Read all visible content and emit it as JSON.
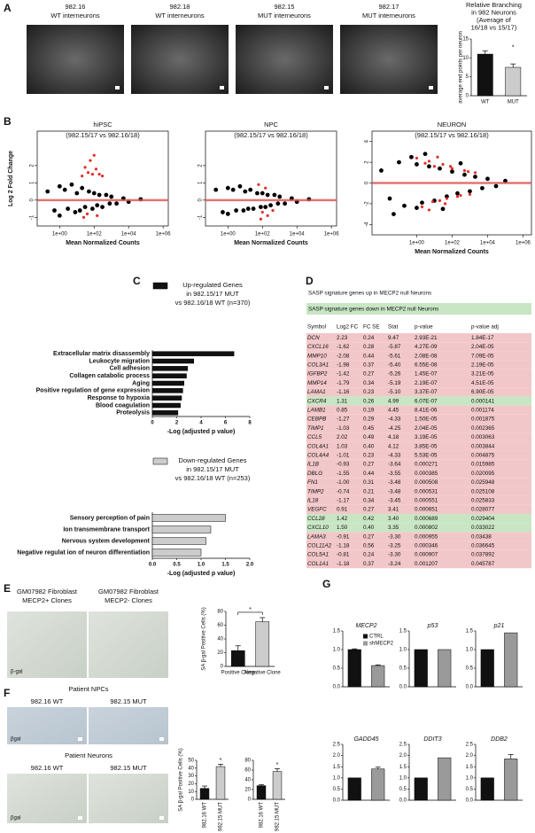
{
  "panel_labels": [
    "A",
    "B",
    "C",
    "D",
    "E",
    "F",
    "G"
  ],
  "micrographs": {
    "A": [
      [
        "982.16",
        "WT interneurons"
      ],
      [
        "982.18",
        "WT interneurons"
      ],
      [
        "982.15",
        "MUT interneurons"
      ],
      [
        "982.17",
        "MUT interneurons"
      ]
    ],
    "E": [
      [
        "GM07982 Fibroblast",
        "MECP2+ Clones"
      ],
      [
        "GM07982 Fibroblast",
        "MECP2- Clones"
      ]
    ],
    "E_stain": "β-gal",
    "F": [
      {
        "heading": "Patient NPCs",
        "captions": [
          "982.16 WT",
          "982.15 MUT"
        ],
        "stain": "βgal"
      },
      {
        "heading": "Patient Neurons",
        "captions": [
          "982.16 WT",
          "982.15 MUT"
        ],
        "stain": "βgal"
      }
    ]
  },
  "table": {
    "legend_up": "SASP signature genes up in MECP2 null Neurons",
    "legend_down": "SASP signature genes down in MECP2 null Neurons",
    "columns": [
      "Symbol",
      "Log2 FC",
      "FC SE",
      "Stat",
      "p-value",
      "p-value adj"
    ],
    "row_groups": [
      "up",
      "up",
      "up",
      "up",
      "up",
      "up",
      "up",
      "down",
      "up",
      "up",
      "up",
      "up",
      "up",
      "up",
      "up",
      "up",
      "up",
      "up",
      "up",
      "up",
      "down",
      "down",
      "up",
      "up",
      "up",
      "up"
    ],
    "rows": [
      [
        "DCN",
        "2.23",
        "0.24",
        "9.47",
        "2.93E-21",
        "1.84E-17"
      ],
      [
        "CXCL16",
        "-1.62",
        "0.28",
        "-5.87",
        "4.27E-09",
        "2.04E-05"
      ],
      [
        "MMP10",
        "-2.08",
        "0.44",
        "-5.61",
        "2.08E-08",
        "7.09E-05"
      ],
      [
        "COL3A1",
        "-1.98",
        "0.37",
        "-5.40",
        "6.55E-08",
        "2.19E-05"
      ],
      [
        "IGFBP2",
        "-1.42",
        "0.27",
        "-5.26",
        "1.45E-07",
        "3.21E-05"
      ],
      [
        "MMP14",
        "-1.79",
        "0.34",
        "-5.19",
        "2.19E-07",
        "4.51E-05"
      ],
      [
        "LAMA1",
        "-1.16",
        "0.23",
        "-5.10",
        "3.37E-07",
        "6.90E-05"
      ],
      [
        "CXCR4",
        "1.31",
        "0.26",
        "4.99",
        "6.07E-07",
        "0.000141"
      ],
      [
        "LAMB1",
        "0.85",
        "0.19",
        "4.45",
        "8.41E-06",
        "0.001174"
      ],
      [
        "CEBPB",
        "-1.27",
        "0.29",
        "-4.33",
        "1.50E-05",
        "0.001875"
      ],
      [
        "TIMP1",
        "-1.03",
        "0.45",
        "-4.25",
        "2.04E-05",
        "0.002365"
      ],
      [
        "CCL5",
        "2.02",
        "0.49",
        "4.18",
        "3.19E-05",
        "0.003063"
      ],
      [
        "COL4A1",
        "1.03",
        "0.40",
        "4.12",
        "3.85E-05",
        "0.003844"
      ],
      [
        "COL4A4",
        "-1.01",
        "0.23",
        "-4.33",
        "5.53E-05",
        "0.004875"
      ],
      [
        "IL1B",
        "-0.93",
        "0.27",
        "-3.64",
        "0.000271",
        "0.015985"
      ],
      [
        "DBLG",
        "-1.55",
        "0.44",
        "-3.55",
        "0.000385",
        "0.020095"
      ],
      [
        "FN1",
        "-1.00",
        "0.31",
        "-3.48",
        "0.000508",
        "0.025948"
      ],
      [
        "TIMP2",
        "-0.74",
        "0.21",
        "-3.48",
        "0.000531",
        "0.025108"
      ],
      [
        "IL18",
        "-1.17",
        "0.34",
        "-3.45",
        "0.000551",
        "0.025833"
      ],
      [
        "VEGFC",
        "0.91",
        "0.27",
        "3.41",
        "0.000651",
        "0.028077"
      ],
      [
        "CCL28",
        "1.42",
        "0.42",
        "3.40",
        "0.000689",
        "0.029404"
      ],
      [
        "CXCL10",
        "1.50",
        "0.40",
        "3.35",
        "0.000802",
        "0.033022"
      ],
      [
        "LAMA3",
        "-0.91",
        "0.27",
        "-3.30",
        "0.000955",
        "0.03438"
      ],
      [
        "COL11A2",
        "-1.18",
        "0.56",
        "-3.25",
        "0.000346",
        "0.036645"
      ],
      [
        "COL5A1",
        "-0.81",
        "0.24",
        "-3.30",
        "0.000907",
        "0.037892"
      ],
      [
        "COL1A1",
        "-1.18",
        "0.37",
        "-3.24",
        "0.001207",
        "0.045787"
      ]
    ]
  },
  "chart_data": [
    {
      "type": "bar",
      "title_lines": [
        "Relative Branching",
        "in 982 Neurons",
        "(Average of",
        "16/18 vs 15/17)"
      ],
      "ylabel": "average end points per neuron",
      "categories": [
        "WT",
        "MUT"
      ],
      "values": [
        11,
        7.5
      ],
      "errors": [
        0.8,
        0.9
      ],
      "colors": [
        "#111111",
        "#cccccc"
      ],
      "ylim": [
        0,
        15
      ],
      "yticks": [
        0,
        5,
        10,
        15
      ],
      "significance": "*"
    },
    {
      "type": "scatter",
      "title": "hiPSC",
      "subtitle": "(982.15/17 vs 982.16/18)",
      "xlabel": "Mean Normalized Counts",
      "ylabel": "Log 2 Fold Change",
      "log_x": true,
      "xlim": [
        0.05,
        2000000
      ],
      "xticks": [
        {
          "value": 1,
          "label": "1e+00"
        },
        {
          "value": 100,
          "label": "1e+02"
        },
        {
          "value": 10000,
          "label": "1e+04"
        },
        {
          "value": 1000000,
          "label": "1e+06"
        }
      ],
      "ylim": [
        -1.5,
        4
      ],
      "yticks": [
        -1,
        0,
        1,
        2
      ],
      "hline": 0,
      "hline_color": "#d9534f",
      "series": [
        {
          "color": "#000000",
          "x": [
            0.2,
            0.5,
            1,
            1,
            2,
            3,
            5,
            8,
            10,
            15,
            20,
            30,
            50,
            80,
            100,
            150,
            200,
            300,
            500,
            800,
            1000,
            2000,
            5000,
            10000,
            50000
          ],
          "values": [
            0.5,
            -0.6,
            0.8,
            -0.9,
            0.6,
            -0.5,
            0.9,
            -0.7,
            0.4,
            -0.6,
            0.7,
            -0.4,
            0.5,
            -0.5,
            0.4,
            -0.3,
            0.3,
            -0.4,
            0.3,
            -0.2,
            0.2,
            -0.2,
            0.1,
            -0.1,
            0.05
          ]
        },
        {
          "color": "#e0302a",
          "x": [
            20,
            30,
            45,
            60,
            80,
            100,
            130,
            200,
            300,
            40,
            150,
            25
          ],
          "values": [
            1.4,
            1.9,
            1.6,
            2.3,
            1.5,
            2.6,
            1.8,
            1.5,
            1.4,
            -0.8,
            -0.9,
            -1.0
          ]
        }
      ]
    },
    {
      "type": "scatter",
      "title": "NPC",
      "subtitle": "(982.15/17 vs 982.16/18)",
      "xlabel": "Mean Normalized Counts",
      "log_x": true,
      "xlim": [
        0.05,
        2000000
      ],
      "xticks": [
        {
          "value": 1,
          "label": "1e+00"
        },
        {
          "value": 100,
          "label": "1e+02"
        },
        {
          "value": 10000,
          "label": "1e+04"
        },
        {
          "value": 1000000,
          "label": "1e+06"
        }
      ],
      "ylim": [
        -1.5,
        4
      ],
      "yticks": [
        -1,
        0,
        1,
        2
      ],
      "hline": 0,
      "hline_color": "#d9534f",
      "series": [
        {
          "color": "#000000",
          "x": [
            0.2,
            0.5,
            1,
            1,
            2,
            3,
            5,
            8,
            10,
            15,
            20,
            30,
            50,
            80,
            100,
            150,
            200,
            300,
            500,
            800,
            1000,
            2000,
            5000,
            10000,
            50000
          ],
          "values": [
            0.6,
            -0.7,
            0.7,
            -0.8,
            0.6,
            -0.6,
            0.8,
            -0.6,
            0.5,
            -0.5,
            0.6,
            -0.5,
            0.4,
            -0.4,
            0.4,
            -0.4,
            0.3,
            -0.3,
            0.3,
            -0.2,
            0.2,
            -0.2,
            0.1,
            -0.1,
            0.05
          ]
        },
        {
          "color": "#e0302a",
          "x": [
            60,
            100,
            200,
            400,
            80,
            150
          ],
          "values": [
            0.9,
            -0.7,
            -0.9,
            -0.6,
            -1.1,
            0.7
          ]
        }
      ]
    },
    {
      "type": "scatter",
      "title": "NEURON",
      "subtitle": "(982.15/17 vs 982.16/18)",
      "xlabel": "Mean Normalized Counts",
      "log_x": true,
      "xlim": [
        0.003,
        3000000
      ],
      "xticks": [
        {
          "value": 1,
          "label": "1e+00"
        },
        {
          "value": 100,
          "label": "1e+02"
        },
        {
          "value": 10000,
          "label": "1e+04"
        },
        {
          "value": 1000000,
          "label": "1e+06"
        }
      ],
      "ylim": [
        -5,
        5
      ],
      "yticks": [
        -4,
        -2,
        0,
        2,
        4
      ],
      "hline": 0,
      "hline_color": "#d9534f",
      "series": [
        {
          "color": "#000000",
          "x": [
            0.01,
            0.03,
            0.1,
            0.2,
            0.5,
            1,
            1,
            2,
            5,
            10,
            20,
            50,
            100,
            200,
            500,
            1000,
            2000,
            5000,
            10000,
            30000,
            100000,
            0.05,
            3,
            30,
            300
          ],
          "values": [
            1.2,
            -1.5,
            2.0,
            -2.2,
            2.5,
            -2.4,
            1.8,
            -1.9,
            1.6,
            -1.7,
            1.4,
            -1.3,
            1.1,
            -1.0,
            0.8,
            -0.8,
            0.6,
            -0.5,
            0.4,
            -0.3,
            0.2,
            -3.0,
            2.8,
            -2.5,
            1.9
          ]
        },
        {
          "color": "#e0302a",
          "x": [
            1,
            2,
            3,
            5,
            8,
            10,
            20,
            30,
            50,
            100,
            200,
            500,
            1000,
            2000,
            5,
            15,
            40,
            80,
            300,
            800
          ],
          "values": [
            2.4,
            -2.3,
            1.9,
            2.1,
            -1.8,
            1.6,
            -1.7,
            1.8,
            -1.5,
            1.4,
            -1.3,
            1.2,
            -1.1,
            1.0,
            -2.6,
            2.5,
            -2.0,
            1.6,
            -1.2,
            1.1
          ]
        }
      ]
    },
    {
      "type": "hbar",
      "legend_lines": [
        "Up-regulated Genes",
        "in 982.15/17 MUT",
        "vs 982.16/18 WT (n=370)"
      ],
      "color": "#111111",
      "categories": [
        "Extracellular matrix disassembly",
        "Leukocyte migration",
        "Cell adhesion",
        "Collagen catabolic process",
        "Aging",
        "Positive regulation of gene expression",
        "Response to hypoxia",
        "Blood coagulation",
        "Proteolysis"
      ],
      "values": [
        6.7,
        3.4,
        2.9,
        2.8,
        2.6,
        2.5,
        2.4,
        2.3,
        2.1
      ],
      "xlim": [
        0,
        8
      ],
      "xticks": [
        0,
        2,
        4,
        6,
        8
      ],
      "xlabel": "-Log (adjusted p value)"
    },
    {
      "type": "hbar",
      "legend_lines": [
        "Down-regulated Genes",
        "in 982.15/17 MUT",
        "vs 982.16/18 WT (n=253)"
      ],
      "color": "#cccccc",
      "categories": [
        "Sensory perception of pain",
        "Ion transmembrane transport",
        "Nervous system development",
        "Negative regulat ion of neuron differentiation"
      ],
      "values": [
        1.5,
        1.2,
        1.1,
        1.0
      ],
      "xlim": [
        0,
        2
      ],
      "xticks": [
        {
          "value": 0,
          "label": "0.0"
        },
        {
          "value": 0.5,
          "label": "0.5"
        },
        {
          "value": 1,
          "label": "1.0"
        },
        {
          "value": 1.5,
          "label": "1.5"
        },
        {
          "value": 2,
          "label": "2.0"
        }
      ],
      "xlabel": "-Log (adjusted p value)"
    },
    {
      "type": "bar",
      "ylabel": "SA β-gal Positive Cells (%)",
      "categories": [
        "Positive Clone",
        "Negative Clone"
      ],
      "values": [
        23,
        65
      ],
      "errors": [
        7,
        6
      ],
      "colors": [
        "#111111",
        "#cccccc"
      ],
      "ylim": [
        0,
        80
      ],
      "yticks": [
        0,
        20,
        40,
        60,
        80
      ],
      "significance": "*",
      "significance_bracket": true
    },
    {
      "type": "bar",
      "ylabel": "SA β-gal Positive Cells (%)",
      "categories": [
        "982.16 WT",
        "982.15 MUT"
      ],
      "values": [
        14,
        42
      ],
      "errors": [
        3,
        3
      ],
      "colors": [
        "#111111",
        "#cccccc"
      ],
      "ylim": [
        0,
        50
      ],
      "yticks": [
        0,
        10,
        20,
        30,
        40,
        50
      ],
      "significance": "*"
    },
    {
      "type": "bar",
      "categories": [
        "982.16 WT",
        "982.15 MUT"
      ],
      "values": [
        28,
        57
      ],
      "errors": [
        2,
        6
      ],
      "colors": [
        "#111111",
        "#cccccc"
      ],
      "ylim": [
        0,
        80
      ],
      "yticks": [
        0,
        20,
        40,
        60,
        80
      ],
      "significance": "*"
    },
    {
      "type": "bar",
      "title": "MECP2",
      "categories": [
        null,
        null
      ],
      "values": [
        1.0,
        0.57
      ],
      "errors": [
        0.02,
        0.02
      ],
      "colors": [
        "#111111",
        "#9a9a9a"
      ],
      "legend": [
        {
          "name": "CTRL",
          "color": "#111111"
        },
        {
          "name": "shMECP2",
          "color": "#9a9a9a"
        }
      ],
      "ylim": [
        0,
        1.5
      ],
      "yticks": [
        {
          "value": 0,
          "label": "0.0"
        },
        {
          "value": 0.5,
          "label": "0.5"
        },
        {
          "value": 1,
          "label": "1.0"
        },
        {
          "value": 1.5,
          "label": "1.5"
        }
      ]
    },
    {
      "type": "bar",
      "title": "p53",
      "categories": [
        null,
        null
      ],
      "values": [
        1.0,
        1.0
      ],
      "colors": [
        "#111111",
        "#9a9a9a"
      ],
      "ylim": [
        0,
        1.5
      ],
      "yticks": [
        {
          "value": 0,
          "label": "0.0"
        },
        {
          "value": 0.5,
          "label": "0.5"
        },
        {
          "value": 1,
          "label": "1.0"
        },
        {
          "value": 1.5,
          "label": "1.5"
        }
      ]
    },
    {
      "type": "bar",
      "title": "p21",
      "categories": [
        null,
        null
      ],
      "values": [
        1.0,
        1.45
      ],
      "colors": [
        "#111111",
        "#9a9a9a"
      ],
      "ylim": [
        0,
        1.5
      ],
      "yticks": [
        {
          "value": 0,
          "label": "0.0"
        },
        {
          "value": 0.5,
          "label": "0.5"
        },
        {
          "value": 1,
          "label": "1.0"
        },
        {
          "value": 1.5,
          "label": "1.5"
        }
      ]
    },
    {
      "type": "bar",
      "title": "GADD45",
      "categories": [
        null,
        null
      ],
      "values": [
        1.0,
        1.4
      ],
      "errors": [
        null,
        0.08
      ],
      "colors": [
        "#111111",
        "#9a9a9a"
      ],
      "ylim": [
        0,
        2.5
      ],
      "yticks": [
        {
          "value": 0,
          "label": "0.0"
        },
        {
          "value": 0.5,
          "label": "0.5"
        },
        {
          "value": 1,
          "label": "1.0"
        },
        {
          "value": 1.5,
          "label": "1.5"
        },
        {
          "value": 2,
          "label": "2.0"
        },
        {
          "value": 2.5,
          "label": "2.5"
        }
      ]
    },
    {
      "type": "bar",
      "title": "DDIT3",
      "categories": [
        null,
        null
      ],
      "values": [
        1.0,
        1.9
      ],
      "colors": [
        "#111111",
        "#9a9a9a"
      ],
      "ylim": [
        0,
        2.5
      ],
      "yticks": [
        {
          "value": 0,
          "label": "0.0"
        },
        {
          "value": 0.5,
          "label": "0.5"
        },
        {
          "value": 1,
          "label": "1.0"
        },
        {
          "value": 1.5,
          "label": "1.5"
        },
        {
          "value": 2,
          "label": "2.0"
        },
        {
          "value": 2.5,
          "label": "2.5"
        }
      ]
    },
    {
      "type": "bar",
      "title": "DDB2",
      "categories": [
        null,
        null
      ],
      "values": [
        1.0,
        1.85
      ],
      "errors": [
        null,
        0.2
      ],
      "colors": [
        "#111111",
        "#9a9a9a"
      ],
      "ylim": [
        0,
        2.5
      ],
      "yticks": [
        {
          "value": 0,
          "label": "0.0"
        },
        {
          "value": 0.5,
          "label": "0.5"
        },
        {
          "value": 1,
          "label": "1.0"
        },
        {
          "value": 1.5,
          "label": "1.5"
        },
        {
          "value": 2,
          "label": "2.0"
        },
        {
          "value": 2.5,
          "label": "2.5"
        }
      ]
    }
  ]
}
